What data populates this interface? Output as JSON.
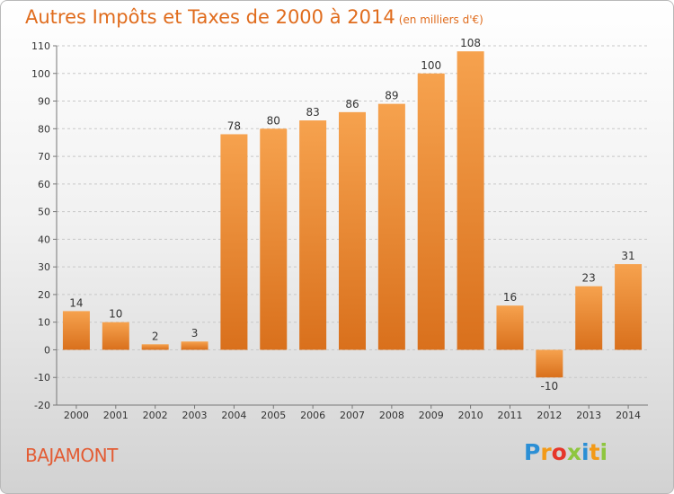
{
  "title": "Autres Impôts et Taxes de 2000 à 2014",
  "unit_note": "(en milliers d'€)",
  "place_name": "BAJAMONT",
  "logo": {
    "letters": [
      "P",
      "r",
      "o",
      "x",
      "i",
      "t",
      "i"
    ],
    "colors": [
      "#2b8fd5",
      "#f39a17",
      "#e6362a",
      "#8ec63f",
      "#2b8fd5",
      "#f39a17",
      "#8ec63f"
    ]
  },
  "colors": {
    "bar_top": "#f6a24e",
    "bar_bottom": "#d9701c",
    "grid": "#c8c8c8",
    "axis": "#777777",
    "text": "#333333"
  },
  "chart_data": {
    "type": "bar",
    "categories": [
      "2000",
      "2001",
      "2002",
      "2003",
      "2004",
      "2005",
      "2006",
      "2007",
      "2008",
      "2009",
      "2010",
      "2011",
      "2012",
      "2013",
      "2014"
    ],
    "values": [
      14,
      10,
      2,
      3,
      78,
      80,
      83,
      86,
      89,
      100,
      108,
      16,
      -10,
      23,
      31
    ],
    "value_labels": [
      "14",
      "10",
      "2",
      "3",
      "78",
      "80",
      "83",
      "86",
      "89",
      "100",
      "108",
      "16",
      "-10",
      "23",
      "31"
    ],
    "yticks": [
      -20,
      -10,
      0,
      10,
      20,
      30,
      40,
      50,
      60,
      70,
      80,
      90,
      100,
      110
    ],
    "ylim": [
      -20,
      110
    ],
    "grid": true,
    "legend": "none"
  }
}
